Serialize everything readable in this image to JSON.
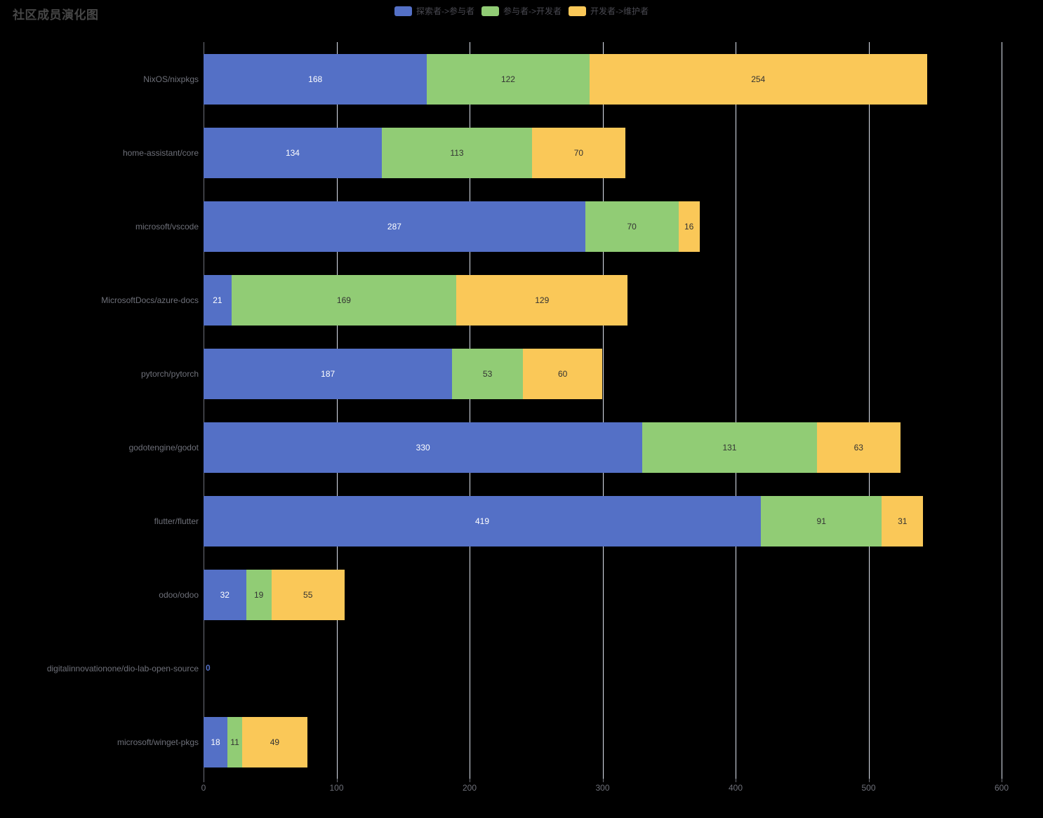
{
  "colors": {
    "background": "#000000",
    "title": "#464646",
    "legend_text": "#4a4a52",
    "axis_label": "#6e7079",
    "grid_line": "#dde3ee",
    "axis_line": "#6e7079",
    "zero_label": "#5470c6"
  },
  "chart_data": {
    "type": "bar",
    "orientation": "horizontal",
    "stacked": true,
    "title": "社区成员演化图",
    "legend_position": "top-center",
    "grid": true,
    "xlim": [
      0,
      600
    ],
    "xticks": [
      0,
      100,
      200,
      300,
      400,
      500,
      600
    ],
    "categories": [
      "NixOS/nixpkgs",
      "home-assistant/core",
      "microsoft/vscode",
      "MicrosoftDocs/azure-docs",
      "pytorch/pytorch",
      "godotengine/godot",
      "flutter/flutter",
      "odoo/odoo",
      "digitalinnovationone/dio-lab-open-source",
      "microsoft/winget-pkgs"
    ],
    "series": [
      {
        "name": "探索者->参与者",
        "color": "#5470c6",
        "label_color": "#ffffff",
        "values": [
          168,
          134,
          287,
          21,
          187,
          330,
          419,
          32,
          0,
          18
        ]
      },
      {
        "name": "参与者->开发者",
        "color": "#91cc75",
        "label_color": "#333333",
        "values": [
          122,
          113,
          70,
          169,
          53,
          131,
          91,
          19,
          0,
          11
        ]
      },
      {
        "name": "开发者->维护者",
        "color": "#fac858",
        "label_color": "#333333",
        "values": [
          254,
          70,
          16,
          129,
          60,
          63,
          31,
          55,
          0,
          49
        ]
      }
    ],
    "zero_label": "0"
  }
}
